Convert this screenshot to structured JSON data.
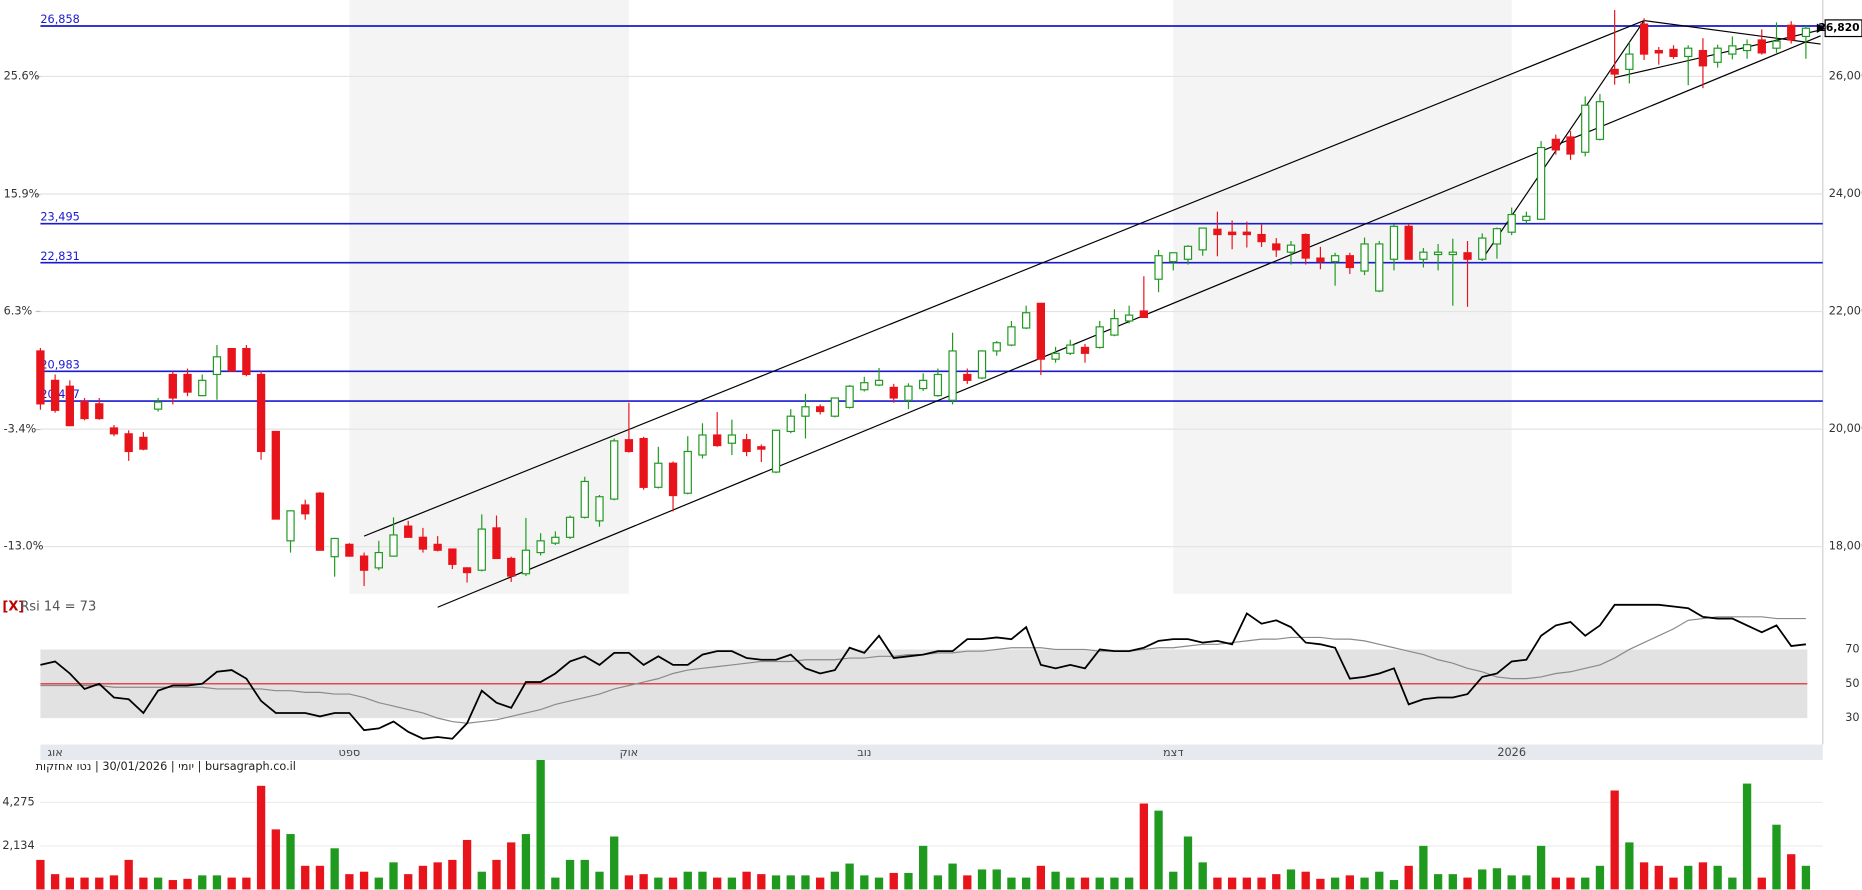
{
  "chart_data": [
    {
      "type": "candlestick",
      "categories": [
        null,
        "אוג",
        null,
        null,
        null,
        null,
        null,
        null,
        null,
        null,
        null,
        null,
        null,
        null,
        null,
        null,
        null,
        null,
        null,
        null,
        null,
        "ספט",
        null,
        null,
        null,
        null,
        null,
        null,
        null,
        null,
        null,
        null,
        null,
        null,
        null,
        null,
        null,
        null,
        null,
        null,
        "אוק",
        null,
        null,
        null,
        null,
        null,
        null,
        null,
        null,
        null,
        null,
        null,
        null,
        null,
        null,
        null,
        "נוב",
        null,
        null,
        null,
        null,
        null,
        null,
        null,
        null,
        null,
        null,
        null,
        null,
        null,
        null,
        null,
        null,
        null,
        null,
        null,
        null,
        "דצמ",
        null,
        null,
        null,
        null,
        null,
        null,
        null,
        null,
        null,
        null,
        null,
        null,
        null,
        null,
        null,
        null,
        null,
        null,
        null,
        null,
        null,
        null,
        "2026",
        null,
        null,
        null,
        null,
        null,
        null,
        null,
        null,
        null,
        null,
        null,
        null,
        null,
        null,
        null,
        null,
        null,
        null,
        null,
        null
      ],
      "open": [
        21330,
        20830,
        20730,
        20470,
        20430,
        20020,
        19920,
        19860,
        20340,
        20930,
        20930,
        20570,
        20930,
        21370,
        21370,
        20930,
        19960,
        18100,
        18710,
        18910,
        17830,
        18040,
        17840,
        17640,
        17840,
        18350,
        18160,
        18040,
        17960,
        17640,
        17600,
        18320,
        17800,
        17540,
        17900,
        18060,
        18160,
        18500,
        18440,
        18810,
        19820,
        19840,
        19010,
        19420,
        18910,
        19560,
        19900,
        19760,
        19820,
        19700,
        19270,
        19960,
        20220,
        20380,
        20220,
        20370,
        20670,
        20750,
        20710,
        20490,
        20690,
        20570,
        20490,
        20930,
        20870,
        21330,
        21430,
        21720,
        22140,
        21190,
        21290,
        21390,
        21390,
        21600,
        21840,
        22010,
        22550,
        22850,
        22890,
        23050,
        23400,
        23350,
        23350,
        23310,
        23150,
        23010,
        23310,
        22910,
        22850,
        22950,
        22690,
        22350,
        22890,
        23450,
        22890,
        22970,
        22970,
        23000,
        22890,
        23150,
        23350,
        23550,
        23570,
        24930,
        24970,
        24710,
        24930,
        26120,
        26120,
        26890,
        26440,
        26460,
        26340,
        26440,
        26240,
        26380,
        26440,
        26620,
        26480,
        26870,
        26680
      ],
      "high": [
        21380,
        20930,
        20830,
        20530,
        20530,
        20070,
        19980,
        19950,
        20530,
        20980,
        21030,
        20930,
        21430,
        21380,
        21430,
        20990,
        19960,
        18610,
        18800,
        18930,
        18150,
        18060,
        17900,
        18100,
        18500,
        18440,
        18320,
        18180,
        17960,
        17650,
        18550,
        18530,
        17830,
        18490,
        18230,
        18260,
        18530,
        19190,
        18880,
        19840,
        20450,
        19870,
        19700,
        19450,
        19880,
        20100,
        20290,
        20160,
        19920,
        19740,
        19990,
        20340,
        20600,
        20420,
        20520,
        20750,
        20890,
        21040,
        20770,
        20780,
        20950,
        21030,
        21640,
        21030,
        21340,
        21500,
        21840,
        22100,
        22140,
        21400,
        21520,
        21450,
        21840,
        22040,
        22100,
        22600,
        23050,
        23000,
        23130,
        23430,
        23700,
        23550,
        23530,
        23490,
        23250,
        23200,
        23330,
        23100,
        23000,
        23000,
        23260,
        23200,
        23480,
        23490,
        23080,
        23150,
        23240,
        23200,
        23330,
        23430,
        23770,
        23700,
        24900,
        25010,
        25070,
        25660,
        25700,
        27130,
        26580,
        26990,
        26500,
        26530,
        26530,
        26650,
        26540,
        26680,
        26630,
        26800,
        26920,
        26940,
        26860
      ],
      "low": [
        20330,
        20280,
        20050,
        20150,
        20160,
        19880,
        19460,
        19640,
        20300,
        20420,
        20560,
        20560,
        20500,
        20990,
        20900,
        19480,
        18470,
        17900,
        18460,
        17940,
        17490,
        17830,
        17330,
        17600,
        17830,
        18160,
        17900,
        17920,
        17620,
        17390,
        17580,
        17790,
        17400,
        17500,
        17850,
        18030,
        18130,
        18480,
        18340,
        18790,
        19600,
        18970,
        18990,
        18600,
        18890,
        19500,
        19700,
        19560,
        19540,
        19440,
        19250,
        19930,
        19840,
        20250,
        20200,
        20350,
        20640,
        20730,
        20450,
        20340,
        20650,
        20550,
        20420,
        20770,
        20850,
        21250,
        21410,
        21700,
        20920,
        21130,
        21260,
        21130,
        21370,
        21580,
        21800,
        21900,
        22330,
        22700,
        22800,
        22950,
        22940,
        23060,
        23090,
        23100,
        22930,
        22800,
        22800,
        22720,
        22440,
        22640,
        22620,
        22330,
        22700,
        22890,
        22750,
        22700,
        22100,
        22080,
        22860,
        22900,
        23300,
        23500,
        23560,
        24670,
        24580,
        24640,
        24910,
        25860,
        25880,
        26280,
        26200,
        26300,
        25850,
        25800,
        26150,
        26290,
        26300,
        26370,
        26400,
        26560,
        26300
      ],
      "close": [
        20430,
        20320,
        20060,
        20180,
        20180,
        19920,
        19620,
        19660,
        20460,
        20530,
        20630,
        20830,
        21230,
        20990,
        20930,
        19620,
        18470,
        18610,
        18560,
        17940,
        18140,
        17840,
        17600,
        17900,
        18200,
        18160,
        17960,
        17940,
        17700,
        17560,
        18300,
        17800,
        17500,
        17940,
        18100,
        18160,
        18500,
        19110,
        18850,
        19800,
        19620,
        19010,
        19420,
        18870,
        19620,
        19900,
        19720,
        19900,
        19620,
        19660,
        19980,
        20220,
        20380,
        20300,
        20530,
        20730,
        20790,
        20830,
        20530,
        20730,
        20830,
        20930,
        21330,
        20830,
        21330,
        21470,
        21740,
        21980,
        21190,
        21290,
        21430,
        21290,
        21740,
        21880,
        21940,
        21900,
        22950,
        23000,
        23110,
        23420,
        23310,
        23310,
        23310,
        23190,
        23050,
        23130,
        22910,
        22850,
        22950,
        22750,
        23150,
        23150,
        23450,
        22890,
        23010,
        23010,
        23010,
        22890,
        23250,
        23410,
        23650,
        23620,
        24790,
        24750,
        24680,
        25510,
        25570,
        26040,
        26380,
        26380,
        26400,
        26340,
        26480,
        26180,
        26480,
        26520,
        26540,
        26400,
        26600,
        26620,
        26820
      ],
      "up_color": "#1f9a1f",
      "down_color": "#e8141b",
      "ylim": [
        17200,
        27300
      ],
      "yticks": [
        {
          "value": 18000,
          "label": "18,000"
        },
        {
          "value": 20000,
          "label": "20,000"
        },
        {
          "value": 22000,
          "label": "22,000"
        },
        {
          "value": 24000,
          "label": "24,000"
        },
        {
          "value": 26000,
          "label": "26,000"
        }
      ],
      "y2lim": [
        -16.9,
        31.9
      ],
      "y2ticks": [
        {
          "value": -13,
          "label": "-13.0%"
        },
        {
          "value": -3.4,
          "label": "-3.4%"
        },
        {
          "value": 6.3,
          "label": "6.3%"
        },
        {
          "value": 15.9,
          "label": "15.9%"
        },
        {
          "value": 25.6,
          "label": "25.6%"
        }
      ],
      "grid": true,
      "level_color": "#1a1ad0",
      "levels": [
        {
          "value": 26858,
          "label": "26,858"
        },
        {
          "value": 23495,
          "label": "23,495"
        },
        {
          "value": 22831,
          "label": "22,831"
        },
        {
          "value": 20983,
          "label": "20,983"
        },
        {
          "value": 20477,
          "label": "20,477"
        }
      ],
      "last_price": {
        "value": 26820,
        "label": "26,820"
      },
      "trend_color": "#000000",
      "trendlines": [
        {
          "x": [
            22,
            109
          ],
          "y": [
            18180,
            26950
          ]
        },
        {
          "x": [
            27,
            121
          ],
          "y": [
            16970,
            26690
          ]
        },
        {
          "x": [
            98,
            109
          ],
          "y": [
            22890,
            26950
          ]
        },
        {
          "x": [
            107,
            121
          ],
          "y": [
            25980,
            26790
          ]
        },
        {
          "x": [
            109,
            121
          ],
          "y": [
            26950,
            26550
          ]
        }
      ]
    },
    {
      "type": "line",
      "close_label": "[X]",
      "title": "Rsi 14 = 73",
      "series": [
        {
          "color": "#000000",
          "values": [
            61,
            63,
            56,
            47,
            50,
            42,
            41,
            33,
            46,
            49,
            49,
            50,
            57,
            58,
            53,
            40,
            33,
            33,
            33,
            31,
            33,
            33,
            23,
            24,
            28,
            22,
            18,
            19,
            18,
            27,
            46,
            39,
            36,
            51,
            51,
            56,
            63,
            66,
            61,
            68,
            68,
            61,
            66,
            61,
            61,
            67,
            69,
            69,
            65,
            64,
            64,
            67,
            59,
            56,
            58,
            71,
            68,
            78,
            65,
            66,
            67,
            69,
            69,
            76,
            76,
            77,
            76,
            83,
            61,
            59,
            61,
            59,
            70,
            69,
            69,
            71,
            75,
            76,
            76,
            74,
            75,
            73,
            91,
            85,
            87,
            83,
            74,
            73,
            71,
            53,
            54,
            56,
            59,
            38,
            41,
            42,
            42,
            44,
            54,
            56,
            63,
            64,
            78,
            84,
            86,
            78,
            84,
            96,
            96,
            96,
            96,
            95,
            94,
            89,
            88,
            88,
            84,
            80,
            84,
            72,
            73
          ]
        },
        {
          "color": "#8a8a8a",
          "values": [
            49,
            49,
            49,
            49,
            49,
            48,
            48,
            48,
            48,
            48,
            48,
            48,
            47,
            47,
            47,
            47,
            46,
            46,
            45,
            45,
            44,
            44,
            42,
            39,
            37,
            35,
            33,
            30,
            28,
            27,
            28,
            29,
            31,
            33,
            35,
            38,
            40,
            42,
            44,
            47,
            49,
            51,
            53,
            56,
            58,
            59,
            60,
            61,
            62,
            63,
            63,
            63,
            64,
            64,
            64,
            65,
            65,
            66,
            66,
            67,
            67,
            68,
            68,
            69,
            69,
            70,
            71,
            71,
            71,
            70,
            70,
            70,
            69,
            69,
            69,
            70,
            71,
            71,
            72,
            73,
            73,
            74,
            75,
            76,
            76,
            77,
            77,
            77,
            76,
            76,
            75,
            73,
            71,
            69,
            67,
            64,
            62,
            59,
            57,
            54,
            53,
            53,
            54,
            56,
            57,
            59,
            61,
            65,
            70,
            74,
            78,
            82,
            87,
            88,
            89,
            89,
            89,
            89,
            88,
            88,
            88
          ]
        }
      ],
      "ylim": [
        16,
        99
      ],
      "yticks": [
        30,
        50,
        70
      ],
      "band_color": "#e2e2e2",
      "mid_color": "#e8141b"
    },
    {
      "type": "bar",
      "caption": "יומי | 30/01/2026 | נטו אחזקות | bursagraph.co.il",
      "values": [
        1450,
        750,
        580,
        580,
        580,
        690,
        1450,
        580,
        580,
        460,
        520,
        690,
        690,
        580,
        580,
        5090,
        2950,
        2720,
        1160,
        1160,
        2020,
        750,
        870,
        580,
        1330,
        750,
        1160,
        1330,
        1450,
        2430,
        870,
        1450,
        2310,
        2720,
        6360,
        580,
        1450,
        1450,
        870,
        2600,
        690,
        750,
        580,
        580,
        870,
        870,
        580,
        580,
        870,
        750,
        690,
        690,
        690,
        580,
        870,
        1270,
        690,
        580,
        810,
        810,
        2140,
        690,
        1270,
        690,
        980,
        980,
        580,
        580,
        1160,
        870,
        580,
        580,
        580,
        580,
        580,
        4220,
        3870,
        870,
        2600,
        1330,
        580,
        580,
        580,
        580,
        750,
        980,
        870,
        520,
        580,
        690,
        580,
        870,
        460,
        1160,
        2140,
        750,
        750,
        580,
        980,
        1040,
        690,
        690,
        2140,
        580,
        580,
        580,
        1160,
        4860,
        2310,
        1330,
        1160,
        580,
        1160,
        1330,
        1160,
        580,
        5200,
        580,
        3180,
        1730,
        1160
      ],
      "ylim": [
        0,
        6360
      ],
      "yticks": [
        {
          "value": 2134,
          "label": "2,134"
        },
        {
          "value": 4275,
          "label": "4,275"
        }
      ]
    }
  ]
}
